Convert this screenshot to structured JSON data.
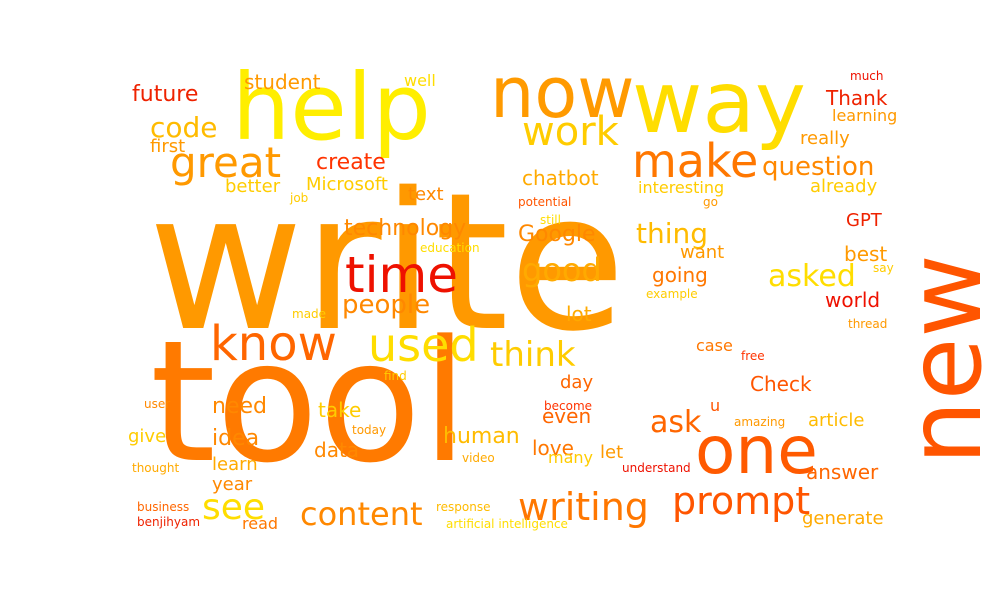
{
  "palette": {
    "red": "#ee1100",
    "red_orange": "#ff3300",
    "orange": "#ff9900",
    "dark_orange": "#ff6600",
    "yellow": "#ffee00",
    "gold": "#ffcc00"
  },
  "words": [
    {
      "text": "write",
      "color": "#ff9900"
    },
    {
      "text": "tool",
      "color": "#ff7a00"
    },
    {
      "text": "new",
      "color": "#ff5500"
    },
    {
      "text": "help",
      "color": "#ffee00"
    },
    {
      "text": "now",
      "color": "#ff9a00"
    },
    {
      "text": "way",
      "color": "#ffdd00"
    },
    {
      "text": "one",
      "color": "#ff5a00"
    },
    {
      "text": "time",
      "color": "#ee1100"
    },
    {
      "text": "make",
      "color": "#ff7700"
    },
    {
      "text": "know",
      "color": "#ff6600"
    },
    {
      "text": "used",
      "color": "#ffdd00"
    },
    {
      "text": "work",
      "color": "#ffcc00"
    },
    {
      "text": "great",
      "color": "#ff9900"
    },
    {
      "text": "writing",
      "color": "#ff7700"
    },
    {
      "text": "prompt",
      "color": "#ff5500"
    },
    {
      "text": "content",
      "color": "#ff8800"
    },
    {
      "text": "think",
      "color": "#ffcc00"
    },
    {
      "text": "good",
      "color": "#ffaa00"
    },
    {
      "text": "question",
      "color": "#ff8800"
    },
    {
      "text": "thing",
      "color": "#ffbb00"
    },
    {
      "text": "people",
      "color": "#ff8800"
    },
    {
      "text": "see",
      "color": "#ffdd00"
    },
    {
      "text": "asked",
      "color": "#ffdd00"
    },
    {
      "text": "ask",
      "color": "#ff6600"
    },
    {
      "text": "code",
      "color": "#ffbb00"
    },
    {
      "text": "future",
      "color": "#ee2200"
    },
    {
      "text": "Google",
      "color": "#ff8800"
    },
    {
      "text": "create",
      "color": "#ff3300"
    },
    {
      "text": "technology",
      "color": "#ff8800"
    },
    {
      "text": "need",
      "color": "#ff8800"
    },
    {
      "text": "human",
      "color": "#ffbb00"
    },
    {
      "text": "going",
      "color": "#ff7700"
    },
    {
      "text": "world",
      "color": "#ee1100"
    },
    {
      "text": "student",
      "color": "#ff9900"
    },
    {
      "text": "Thank",
      "color": "#ee2200"
    },
    {
      "text": "chatbot",
      "color": "#ffaa00"
    },
    {
      "text": "Microsoft",
      "color": "#ffcc00"
    },
    {
      "text": "really",
      "color": "#ff9900"
    },
    {
      "text": "best",
      "color": "#ff9900"
    },
    {
      "text": "idea",
      "color": "#ff8800"
    },
    {
      "text": "Check",
      "color": "#ff5500"
    },
    {
      "text": "answer",
      "color": "#ff6600"
    },
    {
      "text": "take",
      "color": "#ffcc00"
    },
    {
      "text": "data",
      "color": "#ff8800"
    },
    {
      "text": "love",
      "color": "#ff7700"
    },
    {
      "text": "lot",
      "color": "#ffaa00"
    },
    {
      "text": "day",
      "color": "#ff6600"
    },
    {
      "text": "even",
      "color": "#ff6600"
    },
    {
      "text": "want",
      "color": "#ff9900"
    },
    {
      "text": "text",
      "color": "#ff8800"
    },
    {
      "text": "GPT",
      "color": "#ee2200"
    },
    {
      "text": "first",
      "color": "#ff9900"
    },
    {
      "text": "better",
      "color": "#ffcc00"
    },
    {
      "text": "well",
      "color": "#ffdd00"
    },
    {
      "text": "learning",
      "color": "#ff9900"
    },
    {
      "text": "already",
      "color": "#ffcc00"
    },
    {
      "text": "article",
      "color": "#ffbb00"
    },
    {
      "text": "generate",
      "color": "#ffaa00"
    },
    {
      "text": "learn",
      "color": "#ffaa00"
    },
    {
      "text": "give",
      "color": "#ffcc00"
    },
    {
      "text": "year",
      "color": "#ff8800"
    },
    {
      "text": "let",
      "color": "#ff9900"
    },
    {
      "text": "many",
      "color": "#ffcc00"
    },
    {
      "text": "case",
      "color": "#ff7700"
    },
    {
      "text": "u",
      "color": "#ff5500"
    },
    {
      "text": "read",
      "color": "#ff7700"
    },
    {
      "text": "interesting",
      "color": "#ffcc00"
    },
    {
      "text": "much",
      "color": "#ee1100"
    },
    {
      "text": "go",
      "color": "#ff9900"
    },
    {
      "text": "job",
      "color": "#ffcc00"
    },
    {
      "text": "potential",
      "color": "#ff5500"
    },
    {
      "text": "still",
      "color": "#ffdd00"
    },
    {
      "text": "education",
      "color": "#ffdd00"
    },
    {
      "text": "say",
      "color": "#ffcc00"
    },
    {
      "text": "example",
      "color": "#ffcc00"
    },
    {
      "text": "thread",
      "color": "#ff9900"
    },
    {
      "text": "made",
      "color": "#ffcc00"
    },
    {
      "text": "find",
      "color": "#ffcc00"
    },
    {
      "text": "free",
      "color": "#ff3300"
    },
    {
      "text": "user",
      "color": "#ff8800"
    },
    {
      "text": "become",
      "color": "#ff3300"
    },
    {
      "text": "today",
      "color": "#ff9900"
    },
    {
      "text": "amazing",
      "color": "#ff9900"
    },
    {
      "text": "thought",
      "color": "#ffaa00"
    },
    {
      "text": "video",
      "color": "#ffaa00"
    },
    {
      "text": "understand",
      "color": "#ee1100"
    },
    {
      "text": "business",
      "color": "#ff6600"
    },
    {
      "text": "benjihyam",
      "color": "#ee2200"
    },
    {
      "text": "response",
      "color": "#ffbb00"
    },
    {
      "text": "artificial intelligence",
      "color": "#ffdd00"
    }
  ]
}
